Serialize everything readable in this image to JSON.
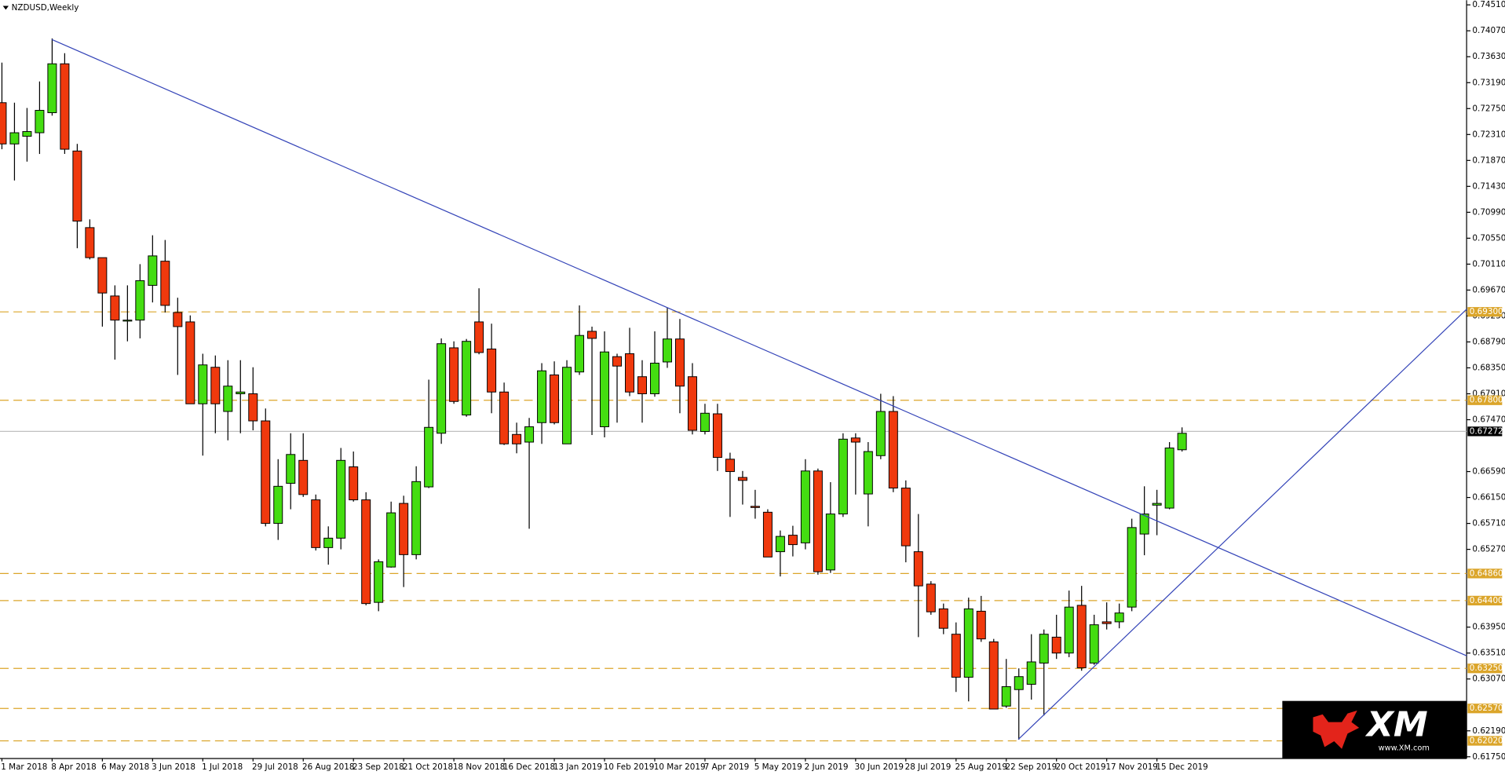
{
  "chart_data": {
    "type": "candlestick",
    "title": "NZDUSD,Weekly",
    "categories": [
      "1 Mar 2018",
      null,
      null,
      null,
      "8 Apr 2018",
      null,
      null,
      null,
      "6 May 2018",
      null,
      null,
      null,
      "3 Jun 2018",
      null,
      null,
      null,
      "1 Jul 2018",
      null,
      null,
      null,
      "29 Jul 2018",
      null,
      null,
      null,
      "26 Aug 2018",
      null,
      null,
      null,
      "23 Sep 2018",
      null,
      null,
      null,
      "21 Oct 2018",
      null,
      null,
      null,
      "18 Nov 2018",
      null,
      null,
      null,
      "16 Dec 2018",
      null,
      null,
      null,
      "13 Jan 2019",
      null,
      null,
      null,
      "10 Feb 2019",
      null,
      null,
      null,
      "10 Mar 2019",
      null,
      null,
      null,
      "7 Apr 2019",
      null,
      null,
      null,
      "5 May 2019",
      null,
      null,
      null,
      "2 Jun 2019",
      null,
      null,
      null,
      "30 Jun 2019",
      null,
      null,
      null,
      "28 Jul 2019",
      null,
      null,
      null,
      "25 Aug 2019",
      null,
      null,
      null,
      "22 Sep 2019",
      null,
      null,
      null,
      "20 Oct 2019",
      null,
      null,
      null,
      "17 Nov 2019",
      null,
      null,
      null,
      "15 Dec 2019",
      null,
      null
    ],
    "open": [
      0.7285,
      0.7215,
      0.7228,
      0.7234,
      0.7268,
      0.7351,
      0.7203,
      0.7073,
      0.7022,
      0.6957,
      0.6915,
      0.6916,
      0.6975,
      0.7016,
      0.6929,
      0.6913,
      0.6774,
      0.6836,
      0.6761,
      0.6791,
      0.6791,
      0.6745,
      0.6571,
      0.6639,
      0.6678,
      0.6611,
      0.653,
      0.6546,
      0.6667,
      0.6611,
      0.6437,
      0.6497,
      0.6605,
      0.6518,
      0.6633,
      0.6724,
      0.6869,
      0.6755,
      0.6913,
      0.6867,
      0.6794,
      0.6722,
      0.6709,
      0.6742,
      0.6823,
      0.6706,
      0.6828,
      0.6897,
      0.6735,
      0.6854,
      0.6859,
      0.682,
      0.6791,
      0.6845,
      0.6884,
      0.682,
      0.6727,
      0.6757,
      0.668,
      0.6649,
      0.66,
      0.659,
      0.6523,
      0.6551,
      0.6538,
      0.666,
      0.6492,
      0.6587,
      0.6716,
      0.6621,
      0.6686,
      0.6761,
      0.6631,
      0.6523,
      0.6468,
      0.6426,
      0.6383,
      0.631,
      0.6422,
      0.637,
      0.6261,
      0.6289,
      0.6298,
      0.6334,
      0.6378,
      0.6351,
      0.6432,
      0.6334,
      0.6404,
      0.6404,
      0.6429,
      0.6553,
      0.6602,
      0.6597,
      0.6696
    ],
    "high": [
      0.7353,
      0.7285,
      0.7276,
      0.7321,
      0.7394,
      0.7369,
      0.7215,
      0.7087,
      0.7022,
      0.6975,
      0.6975,
      0.7011,
      0.706,
      0.7052,
      0.6954,
      0.6924,
      0.6859,
      0.6856,
      0.6848,
      0.6848,
      0.6836,
      0.6766,
      0.668,
      0.6724,
      0.6724,
      0.662,
      0.6566,
      0.6699,
      0.6693,
      0.6624,
      0.651,
      0.6608,
      0.6618,
      0.6668,
      0.6815,
      0.6885,
      0.688,
      0.6884,
      0.697,
      0.691,
      0.681,
      0.6742,
      0.675,
      0.6843,
      0.6846,
      0.6848,
      0.6941,
      0.6905,
      0.6897,
      0.6859,
      0.6903,
      0.6848,
      0.6897,
      0.6937,
      0.6918,
      0.6843,
      0.6774,
      0.6774,
      0.6691,
      0.666,
      0.6628,
      0.6595,
      0.6559,
      0.6567,
      0.668,
      0.6664,
      0.6641,
      0.6724,
      0.6724,
      0.6709,
      0.6791,
      0.6787,
      0.6644,
      0.6587,
      0.6473,
      0.6435,
      0.6403,
      0.6445,
      0.6448,
      0.6375,
      0.6341,
      0.6325,
      0.6383,
      0.6391,
      0.6416,
      0.6457,
      0.6465,
      0.6416,
      0.6437,
      0.6435,
      0.6579,
      0.6634,
      0.6628,
      0.6709,
      0.6734
    ],
    "low": [
      0.7206,
      0.7153,
      0.7185,
      0.7198,
      0.7263,
      0.7198,
      0.7038,
      0.7019,
      0.6905,
      0.6849,
      0.688,
      0.6885,
      0.6946,
      0.6929,
      0.6823,
      0.6774,
      0.6686,
      0.6724,
      0.6712,
      0.6724,
      0.6729,
      0.6566,
      0.6543,
      0.6595,
      0.6616,
      0.6525,
      0.6501,
      0.6527,
      0.6608,
      0.6432,
      0.6422,
      0.6496,
      0.6463,
      0.651,
      0.6631,
      0.6706,
      0.6774,
      0.6752,
      0.6858,
      0.6758,
      0.6704,
      0.669,
      0.6562,
      0.6706,
      0.6739,
      0.6706,
      0.6823,
      0.6721,
      0.6717,
      0.6742,
      0.6787,
      0.6742,
      0.6786,
      0.6835,
      0.6758,
      0.6722,
      0.6722,
      0.666,
      0.6582,
      0.6603,
      0.6579,
      0.6514,
      0.6481,
      0.6515,
      0.6527,
      0.6484,
      0.6487,
      0.6582,
      0.662,
      0.6566,
      0.668,
      0.6624,
      0.6505,
      0.6378,
      0.6416,
      0.6383,
      0.6285,
      0.6269,
      0.637,
      0.6256,
      0.6258,
      0.6204,
      0.6272,
      0.6245,
      0.6341,
      0.6344,
      0.6321,
      0.6331,
      0.6391,
      0.6393,
      0.6422,
      0.6517,
      0.6551,
      0.6595,
      0.6693
    ],
    "close": [
      0.7215,
      0.7234,
      0.7236,
      0.7272,
      0.7351,
      0.7206,
      0.7084,
      0.7022,
      0.6962,
      0.6916,
      0.6916,
      0.6983,
      0.7025,
      0.6941,
      0.6905,
      0.6774,
      0.684,
      0.6774,
      0.6804,
      0.6794,
      0.6745,
      0.6571,
      0.6634,
      0.6688,
      0.662,
      0.653,
      0.6546,
      0.6678,
      0.6611,
      0.6435,
      0.6506,
      0.6589,
      0.6518,
      0.6642,
      0.6734,
      0.6876,
      0.6778,
      0.688,
      0.6861,
      0.6794,
      0.6706,
      0.6706,
      0.6735,
      0.683,
      0.6742,
      0.6836,
      0.689,
      0.6885,
      0.6862,
      0.6838,
      0.6794,
      0.6791,
      0.6843,
      0.6884,
      0.6804,
      0.6729,
      0.6758,
      0.6683,
      0.6659,
      0.6644,
      0.6598,
      0.6514,
      0.6549,
      0.6535,
      0.666,
      0.6489,
      0.6587,
      0.6714,
      0.6709,
      0.6693,
      0.6761,
      0.6631,
      0.6533,
      0.6465,
      0.6421,
      0.6393,
      0.631,
      0.6426,
      0.6375,
      0.6256,
      0.6294,
      0.6311,
      0.6336,
      0.6383,
      0.6351,
      0.6429,
      0.6326,
      0.6399,
      0.6401,
      0.6419,
      0.6564,
      0.6587,
      0.6605,
      0.6699,
      0.6724
    ],
    "up_color": "#44dd11",
    "down_color": "#f0390d",
    "ylim": [
      0.6172,
      0.7459
    ],
    "yticks": [
      {
        "value": 0.7451,
        "label": "0.74510"
      },
      {
        "value": 0.7407,
        "label": "0.74070"
      },
      {
        "value": 0.7363,
        "label": "0.73630"
      },
      {
        "value": 0.7319,
        "label": "0.73190"
      },
      {
        "value": 0.7275,
        "label": "0.72750"
      },
      {
        "value": 0.7231,
        "label": "0.72310"
      },
      {
        "value": 0.7187,
        "label": "0.71870"
      },
      {
        "value": 0.7143,
        "label": "0.71430"
      },
      {
        "value": 0.7099,
        "label": "0.70990"
      },
      {
        "value": 0.7055,
        "label": "0.70550"
      },
      {
        "value": 0.7011,
        "label": "0.70110"
      },
      {
        "value": 0.6967,
        "label": "0.69670"
      },
      {
        "value": 0.6923,
        "label": "0.69230"
      },
      {
        "value": 0.6879,
        "label": "0.68790"
      },
      {
        "value": 0.6835,
        "label": "0.68350"
      },
      {
        "value": 0.6791,
        "label": "0.67910"
      },
      {
        "value": 0.6747,
        "label": "0.67470"
      },
      {
        "value": 0.6659,
        "label": "0.66590"
      },
      {
        "value": 0.6615,
        "label": "0.66150"
      },
      {
        "value": 0.6571,
        "label": "0.65710"
      },
      {
        "value": 0.6527,
        "label": "0.65270"
      },
      {
        "value": 0.6395,
        "label": "0.63950"
      },
      {
        "value": 0.6351,
        "label": "0.63510"
      },
      {
        "value": 0.6307,
        "label": "0.63070"
      },
      {
        "value": 0.6219,
        "label": "0.62190"
      },
      {
        "value": 0.6175,
        "label": "0.61750"
      }
    ],
    "levels": [
      {
        "value": 0.693,
        "label": "0.69300"
      },
      {
        "value": 0.678,
        "label": "0.67800"
      },
      {
        "value": 0.6486,
        "label": "0.64860"
      },
      {
        "value": 0.644,
        "label": "0.64400"
      },
      {
        "value": 0.6325,
        "label": "0.63250"
      },
      {
        "value": 0.6257,
        "label": "0.62570"
      },
      {
        "value": 0.6202,
        "label": "0.62020"
      }
    ],
    "level_color": "#dba52a",
    "current_price": 0.67272
  },
  "logo": {
    "brand": "XM",
    "url": "www.XM.com"
  }
}
